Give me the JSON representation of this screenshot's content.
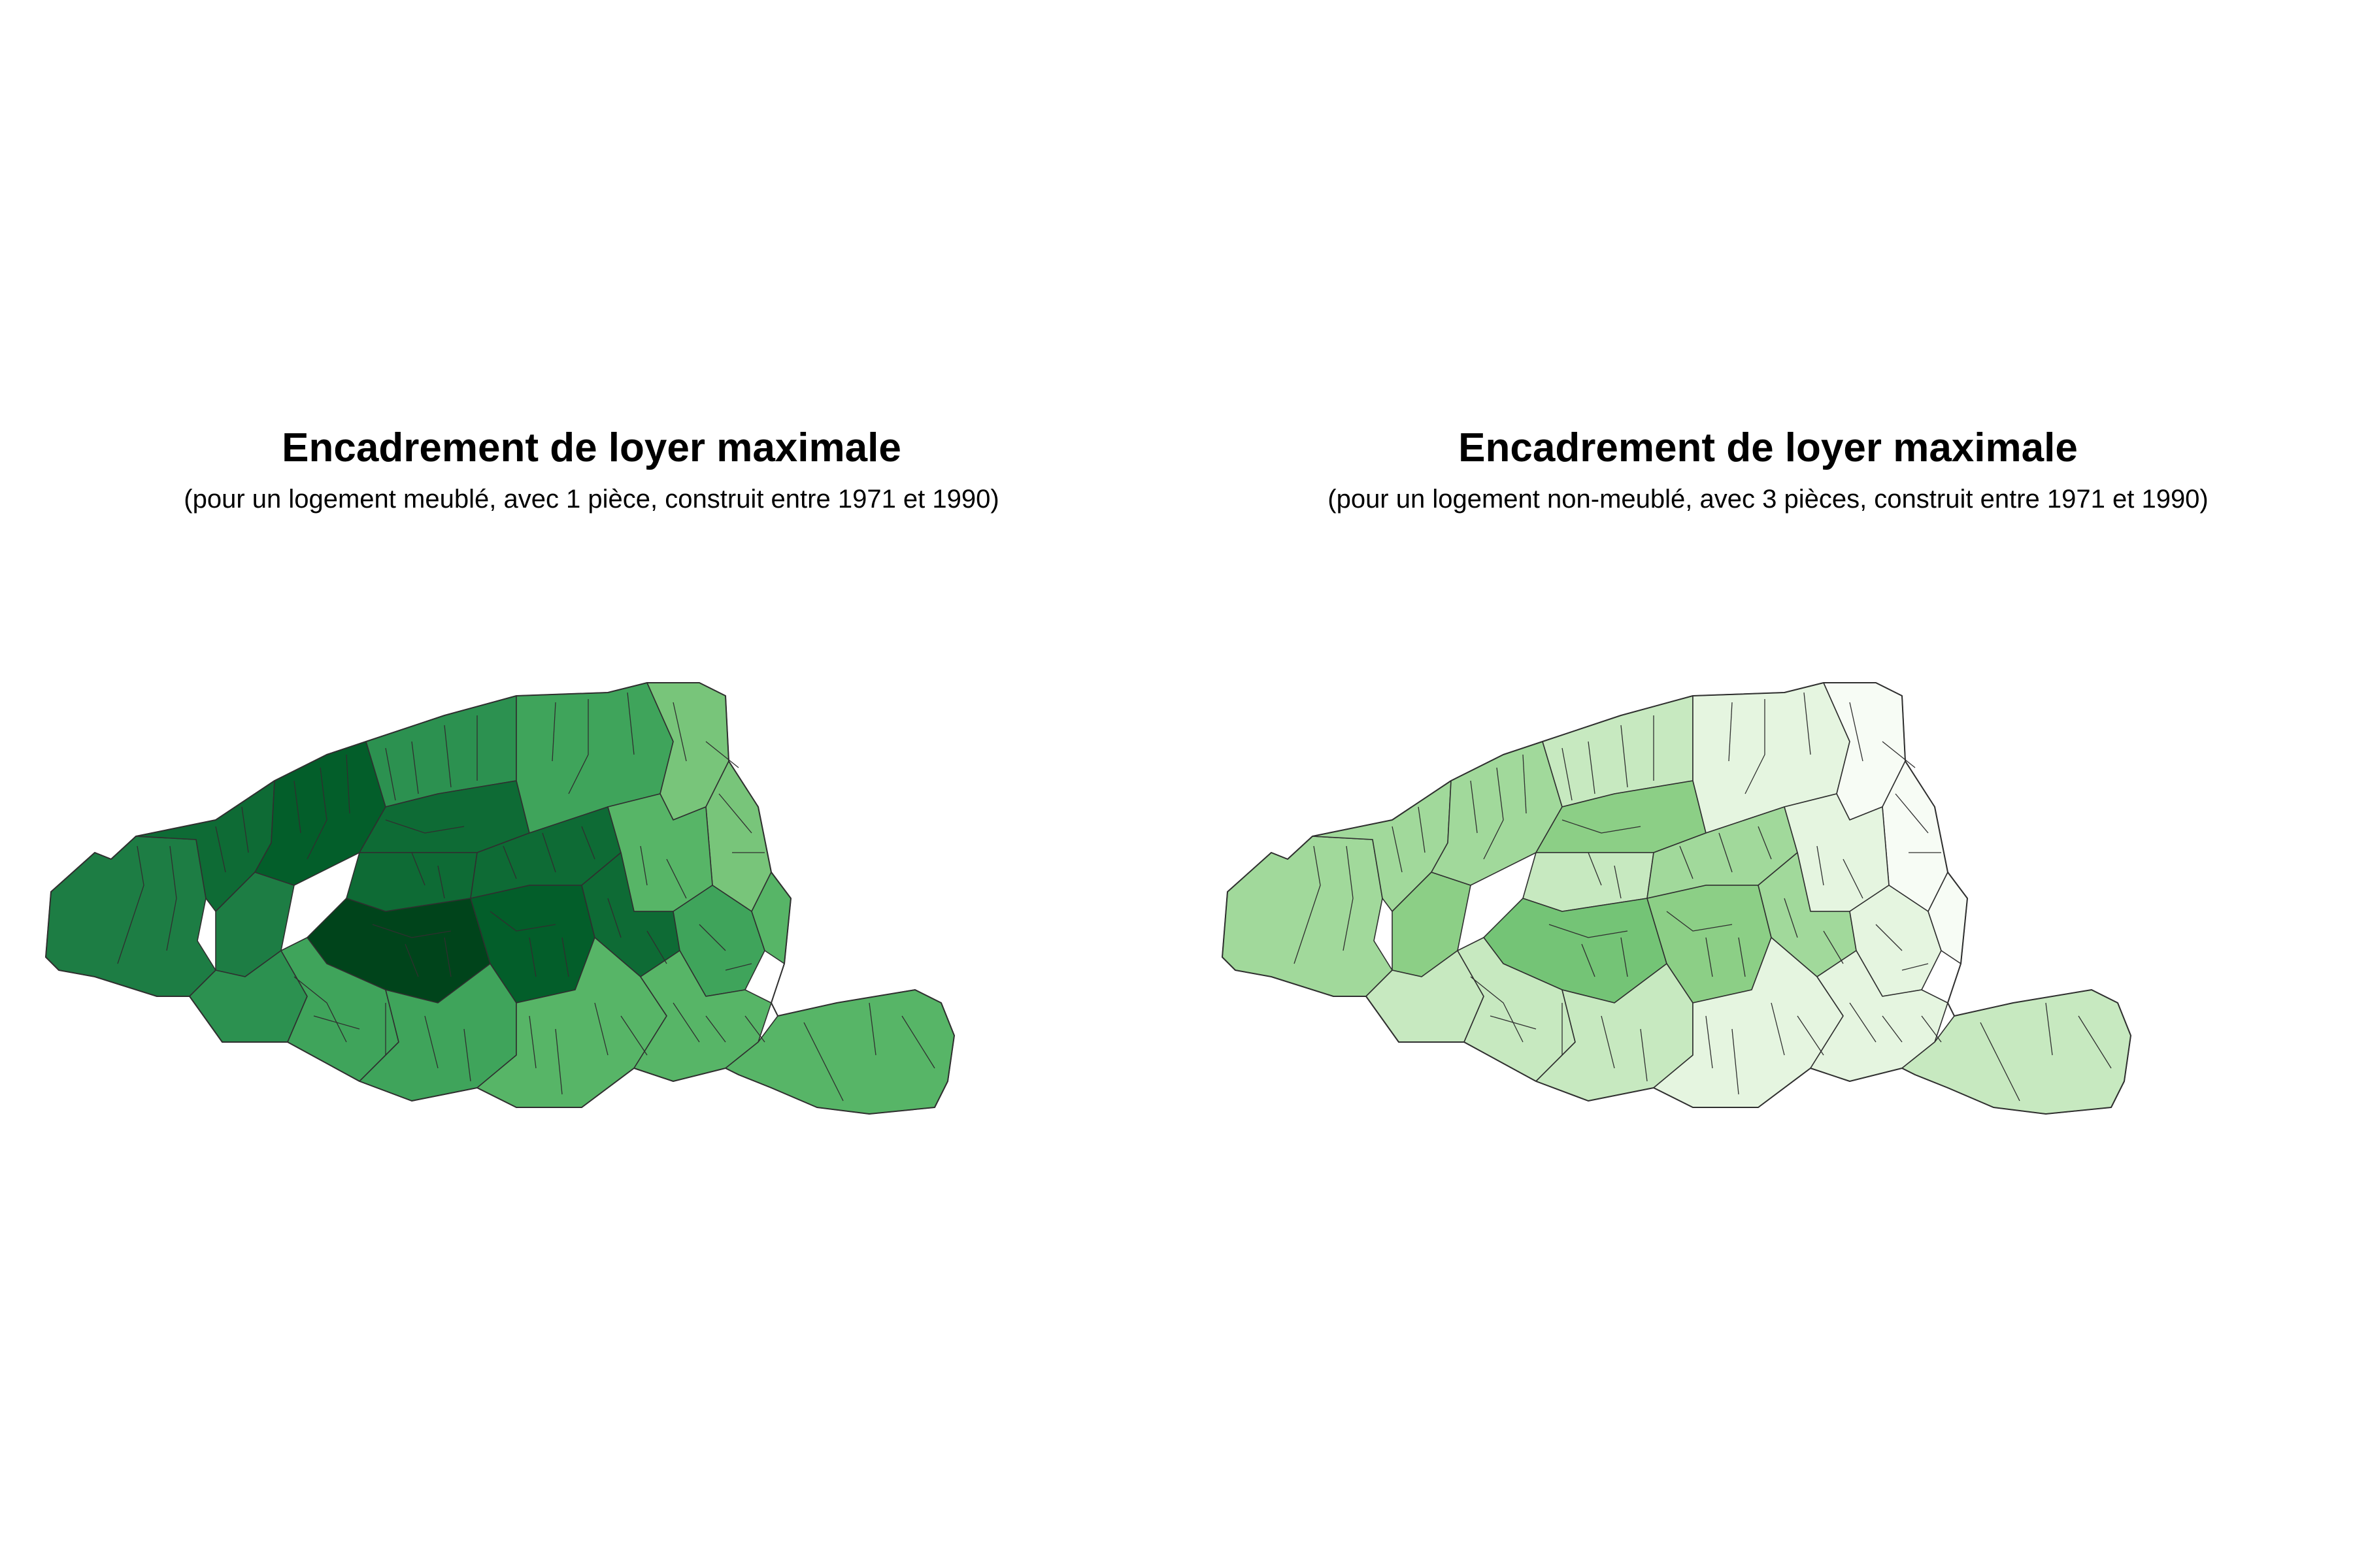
{
  "maps": [
    {
      "title": "Encadrement de loyer maximale",
      "subtitle": "(pour un logement meublé, avec 1 pièce, construit entre 1971 et 1990)",
      "palette": [
        "#9fd795",
        "#78c57a",
        "#57b567",
        "#3fa45b",
        "#2c9150",
        "#1d7d44",
        "#0e6b35",
        "#035e2a",
        "#00441b"
      ],
      "region_levels": {
        "bois-de-boulogne": 5,
        "ouest-16e": 5,
        "sud-16e": 4,
        "nord-16e": 6,
        "nord-ouest": 7,
        "nord-17e": 4,
        "centre-nord": 6,
        "nord-18e": 3,
        "nord-est": 1,
        "est-19e": 1,
        "centre-8e": 6,
        "centre-9e": 6,
        "est-10e": 2,
        "centre-7e": 8,
        "centre-6e": 7,
        "centre-5e": 6,
        "est-11e": 3,
        "est-20e": 2,
        "sud-15e": 3,
        "sud-14e": 3,
        "sud-13e": 2,
        "sud-est-12e": 2,
        "bois-de-vincennes": 2
      }
    },
    {
      "title": "Encadrement de loyer maximale",
      "subtitle": "(pour un logement non-meublé, avec 3 pièces, construit entre 1971 et 1990)",
      "palette": [
        "#f7fcf5",
        "#e5f5e0",
        "#c7e9c0",
        "#a1d99b",
        "#8ccf86",
        "#74c476",
        "#5fb867",
        "#48a85b",
        "#31a354"
      ],
      "region_levels": {
        "bois-de-boulogne": 3,
        "ouest-16e": 4,
        "sud-16e": 2,
        "nord-16e": 3,
        "nord-ouest": 3,
        "nord-17e": 2,
        "centre-nord": 4,
        "nord-18e": 1,
        "nord-est": 0,
        "est-19e": 0,
        "centre-8e": 2,
        "centre-9e": 3,
        "est-10e": 1,
        "centre-7e": 5,
        "centre-6e": 4,
        "centre-5e": 3,
        "est-11e": 1,
        "est-20e": 0,
        "sud-15e": 2,
        "sud-14e": 2,
        "sud-13e": 1,
        "sud-est-12e": 1,
        "bois-de-vincennes": 2
      }
    }
  ]
}
